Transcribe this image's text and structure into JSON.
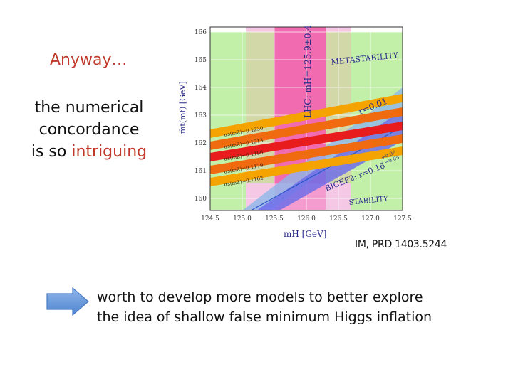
{
  "slide": {
    "heading": "Anyway…",
    "body_line_1": "the numerical",
    "body_line_2": "concordance",
    "body_line_3_plain": "is so ",
    "body_line_3_highlight": "intriguing",
    "citation": "IM, PRD 1403.5244",
    "bottom_line_1": "worth to develop more models  to better explore",
    "bottom_line_2": "the idea of shallow false minimum Higgs inflation",
    "accent_color": "#c0392b",
    "arrow_icon": "right-arrow-icon",
    "arrow_color": "#5b8fd6"
  },
  "figure": {
    "y_axis_label": "m̄t(mt) [GeV]",
    "x_axis_label": "mH [GeV]",
    "lhc_label": "LHC: mH=125.9±0.4",
    "metastability_label": "METASTABILITY",
    "stability_label": "STABILITY",
    "r_label": "r=0.01",
    "bicep_label": "BICEP2: r=0.16",
    "bicep_sup": "+0.06",
    "bicep_sub": "−0.05",
    "alpha_labels": [
      "αs(mZ)=0.1230",
      "αs(mZ)=0.1213",
      "αs(mZ)=0.1196",
      "αs(mZ)=0.1179",
      "αs(mZ)=0.1162"
    ]
  },
  "chart_data": {
    "type": "area",
    "xlabel": "mH [GeV]",
    "ylabel": "m̄t(mt) [GeV]",
    "xlim": [
      124.5,
      127.5
    ],
    "ylim": [
      159.6,
      166.2
    ],
    "x_ticks": [
      "124.5",
      "125.0",
      "125.5",
      "126.0",
      "126.5",
      "127.0",
      "127.5"
    ],
    "y_ticks": [
      "160",
      "161",
      "162",
      "163",
      "164",
      "165",
      "166"
    ],
    "grid": true,
    "regions": [
      {
        "name": "METASTABILITY",
        "color": "#c2f0a8"
      },
      {
        "name": "STABILITY",
        "color": "#c2f0a8"
      },
      {
        "name": "LHC: mH=125.9±0.4",
        "x_range": [
          125.5,
          126.3
        ],
        "color": "#f06bb0"
      }
    ],
    "series": [
      {
        "name": "αs(mZ)=0.1230",
        "color": "#f5a300",
        "x": [
          124.5,
          127.5
        ],
        "y": [
          161.8,
          163.65
        ]
      },
      {
        "name": "αs(mZ)=0.1213",
        "color": "#f06a10",
        "x": [
          124.5,
          127.5
        ],
        "y": [
          161.4,
          163.15
        ]
      },
      {
        "name": "αs(mZ)=0.1196",
        "color": "#e81c1c",
        "x": [
          124.5,
          127.5
        ],
        "y": [
          161.0,
          162.65
        ]
      },
      {
        "name": "αs(mZ)=0.1179",
        "color": "#f06a10",
        "x": [
          124.5,
          127.5
        ],
        "y": [
          160.55,
          162.2
        ]
      },
      {
        "name": "αs(mZ)=0.1162",
        "color": "#f5a300",
        "x": [
          124.5,
          127.5
        ],
        "y": [
          160.1,
          161.75
        ]
      },
      {
        "name": "r=0.01",
        "color": "#8fb8ea",
        "x": [
          125.0,
          127.5
        ],
        "y": [
          159.6,
          163.3
        ]
      },
      {
        "name": "BICEP2: r=0.16",
        "color": "#6f6fe8",
        "x": [
          125.2,
          127.5
        ],
        "y": [
          159.6,
          162.5
        ]
      }
    ]
  }
}
